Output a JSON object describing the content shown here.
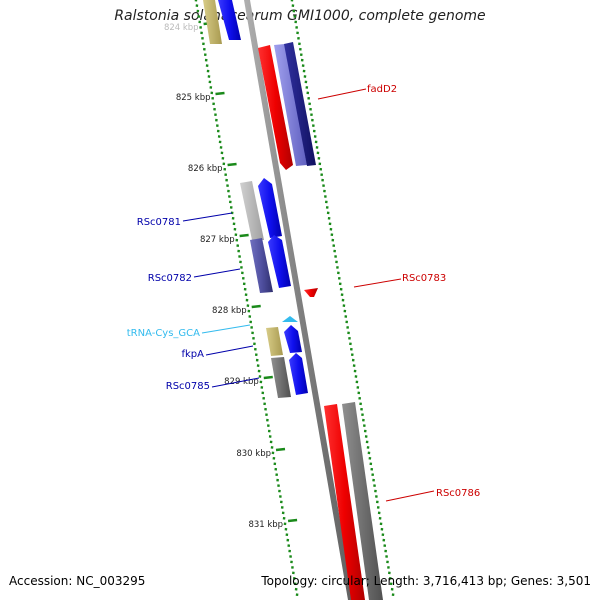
{
  "title": "Ralstonia solanacearum GMI1000, complete genome",
  "footer": {
    "accession": "Accession: NC_003295",
    "summary": "Topology: circular; Length: 3,716,413 bp; Genes: 3,501"
  },
  "ruler": {
    "ticks": [
      "824 kbp",
      "825 kbp",
      "826 kbp",
      "827 kbp",
      "828 kbp",
      "829 kbp",
      "830 kbp",
      "831 kbp"
    ]
  },
  "genes": [
    {
      "label": "fadD2",
      "color": "#cc0000",
      "strand": "reverse"
    },
    {
      "label": "RSc0781",
      "color": "#0000aa",
      "strand": "forward"
    },
    {
      "label": "RSc0782",
      "color": "#0000aa",
      "strand": "forward"
    },
    {
      "label": "RSc0783",
      "color": "#cc0000",
      "strand": "reverse"
    },
    {
      "label": "tRNA-Cys_GCA",
      "color": "#33bbee",
      "strand": "forward"
    },
    {
      "label": "fkpA",
      "color": "#0000aa",
      "strand": "forward"
    },
    {
      "label": "RSc0785",
      "color": "#0000aa",
      "strand": "forward"
    },
    {
      "label": "RSc0786",
      "color": "#cc0000",
      "strand": "reverse"
    }
  ],
  "colors": {
    "forward": "#0000ee",
    "reverse": "#ee0000",
    "tick": "#1a8a1a",
    "backbone": "#8a8a8a"
  }
}
